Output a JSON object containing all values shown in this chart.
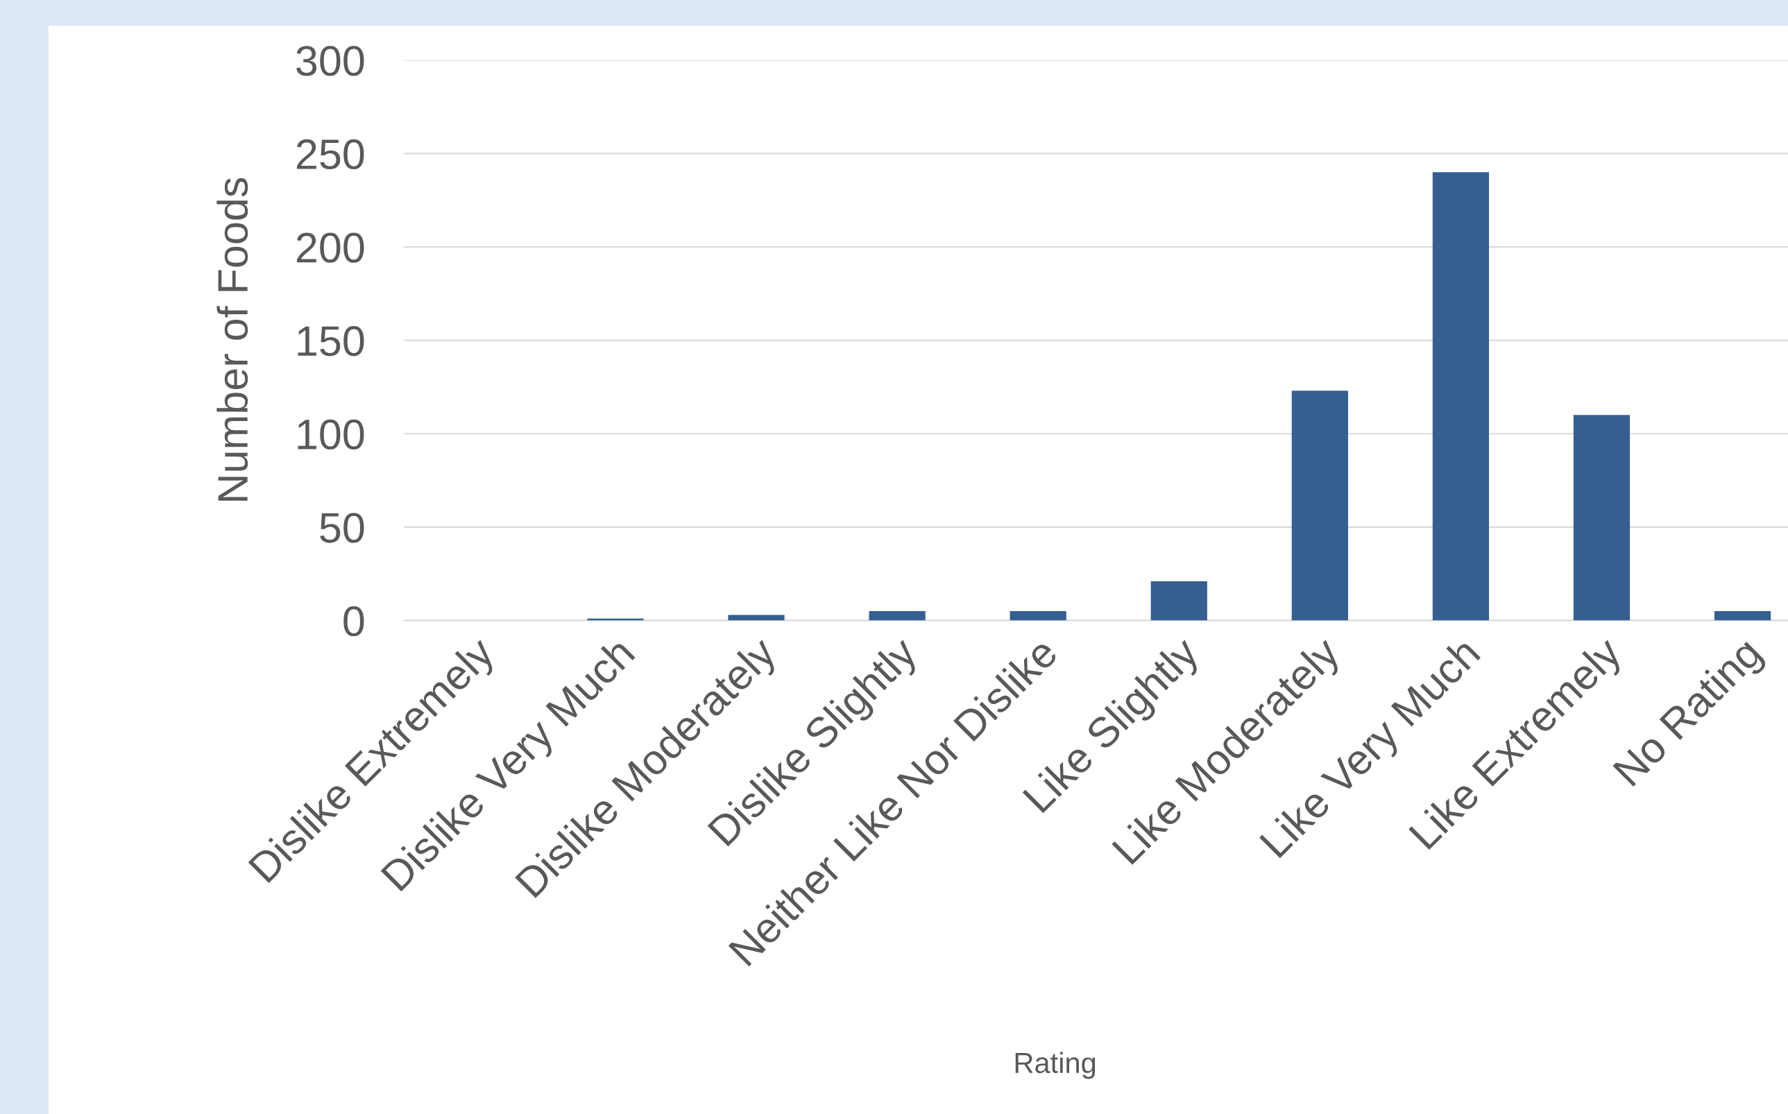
{
  "chart_data": {
    "type": "bar",
    "xlabel": "Rating",
    "ylabel": "Number of Foods",
    "categories": [
      "Dislike Extremely",
      "Dislike Very Much",
      "Dislike Moderately",
      "Dislike Slightly",
      "Neither Like Nor Dislike",
      "Like Slightly",
      "Like Moderately",
      "Like Very Much",
      "Like Extremely",
      "No Rating"
    ],
    "values": [
      0,
      1,
      3,
      5,
      5,
      21,
      123,
      240,
      110,
      5
    ],
    "color": "#355f91",
    "ylim": [
      0,
      300
    ],
    "yticks": [
      0,
      50,
      100,
      150,
      200,
      250,
      300
    ],
    "grid": "y"
  }
}
